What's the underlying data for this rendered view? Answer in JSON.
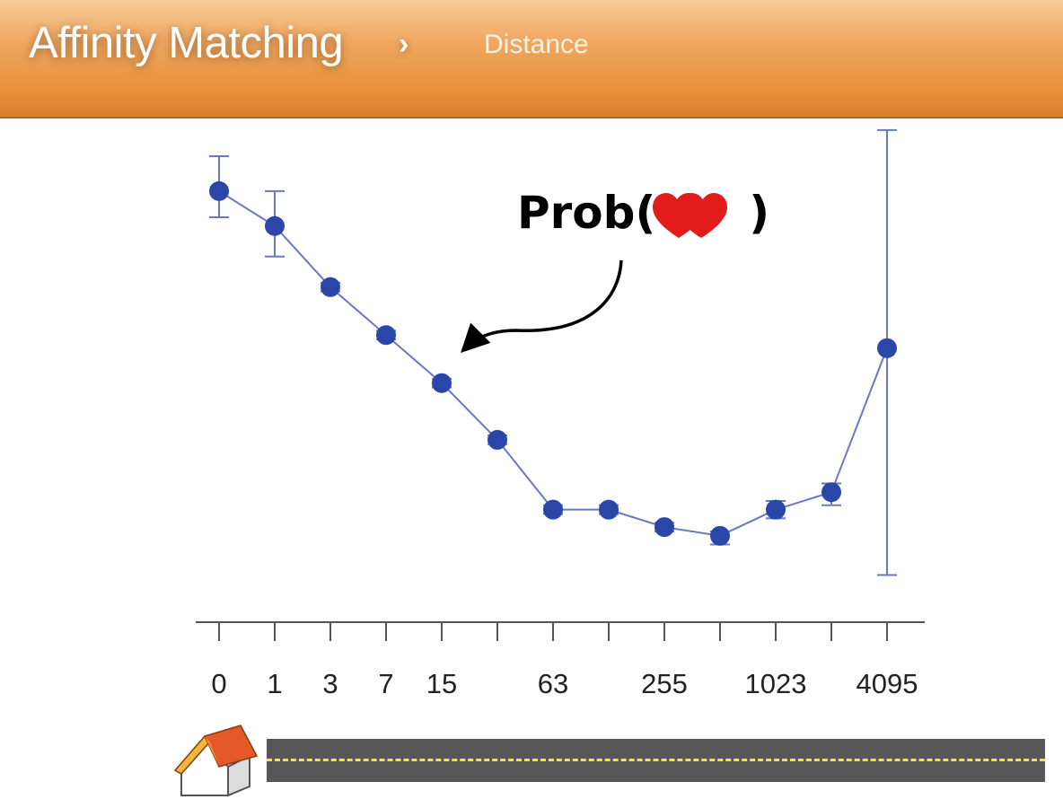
{
  "header": {
    "title": "Affinity Matching",
    "separator": "›",
    "current": "Distance"
  },
  "annotation": {
    "prefix": "Prob(",
    "suffix": ")",
    "icon": "heart-icon"
  },
  "colors": {
    "header": "#e8923c",
    "series": "#2a46a8",
    "line": "#6a78c2",
    "heart": "#e31b1b",
    "road": "#575757",
    "road_line": "#f0e24a"
  },
  "chart_data": {
    "type": "line",
    "x_scale": "log2(x+1)",
    "x_ticks": [
      0,
      1,
      3,
      7,
      15,
      31,
      63,
      127,
      255,
      511,
      1023,
      2047,
      4095
    ],
    "x_tick_labels": [
      "0",
      "1",
      "3",
      "7",
      "15",
      "",
      "63",
      "",
      "255",
      "",
      "1023",
      "",
      "4095"
    ],
    "x": [
      0,
      1,
      3,
      7,
      15,
      31,
      63,
      127,
      255,
      511,
      1023,
      2047,
      4095
    ],
    "y": [
      0.92,
      0.84,
      0.7,
      0.59,
      0.48,
      0.35,
      0.19,
      0.19,
      0.15,
      0.13,
      0.19,
      0.23,
      0.56
    ],
    "y_err_low": [
      0.86,
      0.77,
      0.69,
      0.58,
      0.47,
      0.34,
      0.18,
      0.18,
      0.14,
      0.11,
      0.17,
      0.2,
      0.04
    ],
    "y_err_high": [
      1.0,
      0.92,
      0.71,
      0.6,
      0.49,
      0.36,
      0.2,
      0.2,
      0.16,
      0.14,
      0.21,
      0.25,
      1.06
    ],
    "ylim": [
      0,
      1.1
    ],
    "y_axis_shown": false,
    "grid": false
  }
}
